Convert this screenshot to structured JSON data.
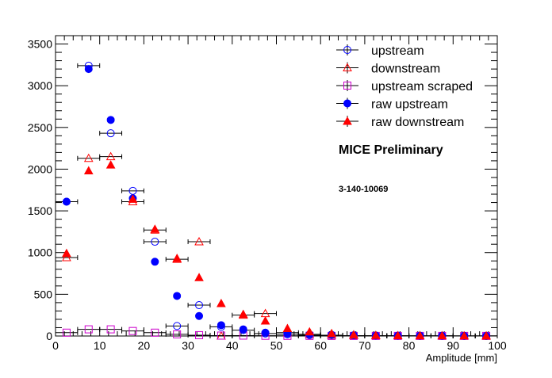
{
  "chart_data": {
    "type": "scatter",
    "xlabel": "Amplitude [mm]",
    "ylabel": "",
    "xlim": [
      0,
      100
    ],
    "ylim": [
      0,
      3600
    ],
    "x_ticks": [
      "0",
      "10",
      "20",
      "30",
      "40",
      "50",
      "60",
      "70",
      "80",
      "90",
      "100"
    ],
    "y_ticks": [
      "0",
      "500",
      "1000",
      "1500",
      "2000",
      "2500",
      "3000",
      "3500"
    ],
    "x_tick_values": [
      0,
      10,
      20,
      30,
      40,
      50,
      60,
      70,
      80,
      90,
      100
    ],
    "y_tick_values": [
      0,
      500,
      1000,
      1500,
      2000,
      2500,
      3000,
      3500
    ],
    "grid": false,
    "legend_position": "top-right",
    "annotations": [
      "MICE Preliminary",
      "3-140-10069"
    ],
    "x_error_halfwidth": 2.5,
    "series": [
      {
        "name": "upstream",
        "marker": "open-circle",
        "color": "#0000ff",
        "x": [
          2.5,
          7.5,
          12.5,
          17.5,
          22.5,
          27.5,
          32.5,
          37.5,
          42.5,
          47.5,
          52.5,
          57.5,
          62.5,
          67.5,
          72.5,
          77.5,
          82.5,
          87.5,
          92.5,
          97.5
        ],
        "y": [
          1610,
          3240,
          2430,
          1740,
          1130,
          120,
          370,
          110,
          70,
          30,
          20,
          10,
          10,
          5,
          3,
          3,
          2,
          2,
          1,
          1
        ]
      },
      {
        "name": "downstream",
        "marker": "open-triangle",
        "color": "#ff0000",
        "x": [
          2.5,
          7.5,
          12.5,
          17.5,
          22.5,
          27.5,
          32.5,
          37.5,
          42.5,
          47.5,
          52.5,
          57.5,
          62.5,
          67.5,
          72.5,
          77.5,
          82.5,
          87.5,
          92.5,
          97.5
        ],
        "y": [
          940,
          2130,
          2150,
          1610,
          1270,
          920,
          1130,
          0,
          250,
          270,
          40,
          20,
          10,
          5,
          3,
          3,
          2,
          2,
          1,
          1
        ]
      },
      {
        "name": "upstream scraped",
        "marker": "open-square",
        "color": "#cc00cc",
        "x": [
          2.5,
          7.5,
          12.5,
          17.5,
          22.5,
          27.5,
          32.5,
          37.5,
          42.5,
          47.5,
          52.5,
          57.5,
          62.5,
          67.5,
          72.5,
          77.5,
          82.5,
          87.5,
          92.5,
          97.5
        ],
        "y": [
          40,
          80,
          80,
          60,
          40,
          20,
          10,
          5,
          5,
          3,
          2,
          2,
          1,
          1,
          1,
          1,
          1,
          1,
          1,
          1
        ]
      },
      {
        "name": "raw upstream",
        "marker": "filled-circle",
        "color": "#0000ff",
        "x": [
          2.5,
          7.5,
          12.5,
          17.5,
          22.5,
          27.5,
          32.5,
          37.5,
          42.5,
          47.5,
          52.5,
          57.5,
          62.5,
          67.5,
          72.5,
          77.5,
          82.5,
          87.5,
          92.5,
          97.5
        ],
        "y": [
          1610,
          3200,
          2590,
          1650,
          890,
          480,
          240,
          130,
          80,
          40,
          30,
          20,
          15,
          10,
          6,
          5,
          4,
          3,
          2,
          1
        ]
      },
      {
        "name": "raw downstream",
        "marker": "filled-triangle",
        "color": "#ff0000",
        "x": [
          2.5,
          7.5,
          12.5,
          17.5,
          22.5,
          27.5,
          32.5,
          37.5,
          42.5,
          47.5,
          52.5,
          57.5,
          62.5,
          67.5,
          72.5,
          77.5,
          82.5,
          87.5,
          92.5,
          97.5
        ],
        "y": [
          990,
          1980,
          2050,
          1640,
          1280,
          930,
          700,
          390,
          260,
          180,
          90,
          50,
          30,
          15,
          8,
          5,
          4,
          3,
          2,
          1
        ]
      }
    ]
  }
}
